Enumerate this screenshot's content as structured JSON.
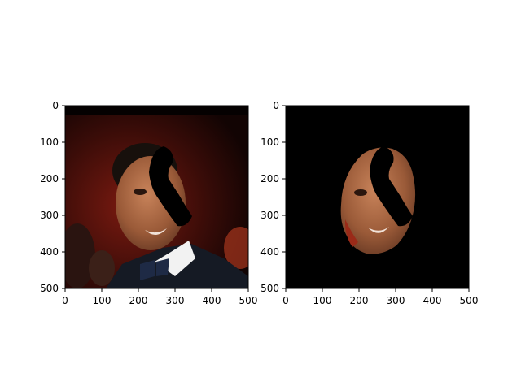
{
  "figure": {
    "background": "#ffffff",
    "panels": [
      {
        "name": "original-image-panel",
        "content": "photo of a man in a tuxedo and bow tie, smiling, with a black curved occlusion over the upper right of his face, dark red party background",
        "background_color": "#3a0c08"
      },
      {
        "name": "masked-face-panel",
        "content": "same photo with everything except the face region masked to black, with the same black curved occlusion",
        "background_color": "#000000"
      }
    ]
  },
  "chart_data": [
    {
      "type": "image",
      "title": "",
      "xlabel": "",
      "ylabel": "",
      "xlim": [
        0,
        500
      ],
      "ylim": [
        500,
        0
      ],
      "x_ticks": [
        "0",
        "100",
        "200",
        "300",
        "400",
        "500"
      ],
      "y_ticks": [
        "0",
        "100",
        "200",
        "300",
        "400",
        "500"
      ],
      "grid": false
    },
    {
      "type": "image",
      "title": "",
      "xlabel": "",
      "ylabel": "",
      "xlim": [
        0,
        500
      ],
      "ylim": [
        500,
        0
      ],
      "x_ticks": [
        "0",
        "100",
        "200",
        "300",
        "400",
        "500"
      ],
      "y_ticks": [
        "0",
        "100",
        "200",
        "300",
        "400",
        "500"
      ],
      "grid": false
    }
  ]
}
